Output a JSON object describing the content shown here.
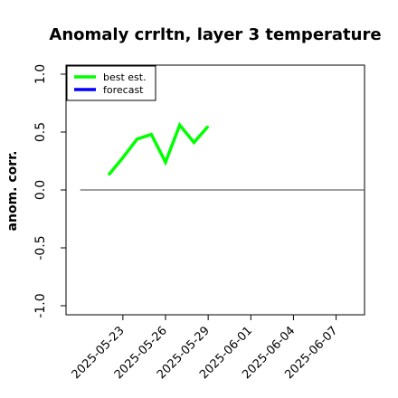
{
  "chart_data": {
    "type": "line",
    "title": "Anomaly crrltn, layer 3 temperature",
    "ylabel": "anom. corr.",
    "xlabel": "",
    "ylim": [
      -1.0,
      1.0
    ],
    "yticks": [
      "-1.0",
      "-0.5",
      "0.0",
      "0.5",
      "1.0"
    ],
    "xlim": [
      "2025-05-19",
      "2025-06-09"
    ],
    "xticks": [
      {
        "label": "2025-05-23",
        "date": "2025-05-23",
        "color": "#000000"
      },
      {
        "label": "2025-05-26",
        "date": "2025-05-26",
        "color": "#000000"
      },
      {
        "label": "2025-05-29",
        "date": "2025-05-29",
        "color": "#228B22"
      },
      {
        "label": "2025-06-01",
        "date": "2025-06-01",
        "color": "#000000"
      },
      {
        "label": "2025-06-04",
        "date": "2025-06-04",
        "color": "#000000"
      },
      {
        "label": "2025-06-07",
        "date": "2025-06-07",
        "color": "#000000"
      }
    ],
    "series": [
      {
        "name": "best est.",
        "color": "#00ff00",
        "x": [
          "2025-05-22",
          "2025-05-23",
          "2025-05-24",
          "2025-05-25",
          "2025-05-26",
          "2025-05-27",
          "2025-05-28",
          "2025-05-29"
        ],
        "values": [
          0.13,
          0.28,
          0.44,
          0.48,
          0.24,
          0.56,
          0.41,
          0.55
        ]
      },
      {
        "name": "forecast",
        "color": "#0000ff",
        "x": [],
        "values": []
      }
    ],
    "hline": {
      "y": 0.0,
      "x_start": "2025-05-20",
      "x_end": "2025-06-09",
      "color": "#666666"
    },
    "legend": {
      "placement": "top-left",
      "entries": [
        "best est.",
        "forecast"
      ]
    },
    "grid": false
  }
}
